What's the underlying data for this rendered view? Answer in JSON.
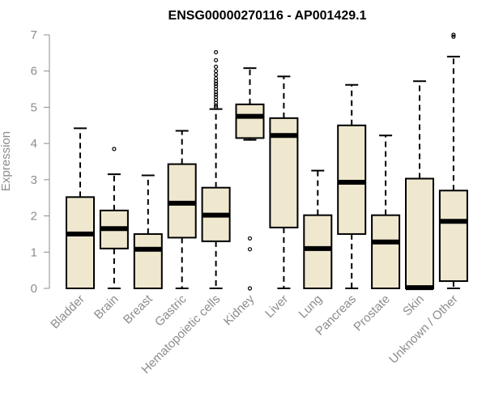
{
  "chart_data": {
    "type": "boxplot",
    "title": "ENSG00000270116 - AP001429.1",
    "xlabel": "",
    "ylabel": "Expression",
    "ylim": [
      0,
      7
    ],
    "yticks": [
      "0",
      "1",
      "2",
      "3",
      "4",
      "5",
      "6",
      "7"
    ],
    "box_fill": "#efe8cf",
    "categories": [
      "Bladder",
      "Brain",
      "Breast",
      "Gastric",
      "Hematopoietic cells",
      "Kidney",
      "Liver",
      "Lung",
      "Pancreas",
      "Prostate",
      "Skin",
      "Unknown / Other"
    ],
    "boxes": [
      {
        "whisker_low": 0.0,
        "q1": 0.0,
        "median": 1.5,
        "q3": 2.52,
        "whisker_high": 4.42,
        "outliers": []
      },
      {
        "whisker_low": 0.0,
        "q1": 1.1,
        "median": 1.65,
        "q3": 2.15,
        "whisker_high": 3.15,
        "outliers": [
          3.85
        ]
      },
      {
        "whisker_low": 0.0,
        "q1": 0.0,
        "median": 1.08,
        "q3": 1.5,
        "whisker_high": 3.12,
        "outliers": []
      },
      {
        "whisker_low": 0.0,
        "q1": 1.4,
        "median": 2.35,
        "q3": 3.43,
        "whisker_high": 4.35,
        "outliers": []
      },
      {
        "whisker_low": 0.0,
        "q1": 1.3,
        "median": 2.02,
        "q3": 2.78,
        "whisker_high": 4.95,
        "outliers": [
          5.0,
          5.05,
          5.12,
          5.2,
          5.28,
          5.35,
          5.42,
          5.5,
          5.58,
          5.65,
          5.72,
          5.8,
          5.9,
          6.0,
          6.12,
          6.3,
          6.52
        ]
      },
      {
        "whisker_low": 4.1,
        "q1": 4.15,
        "median": 4.75,
        "q3": 5.08,
        "whisker_high": 6.08,
        "outliers": [
          0.0,
          1.08,
          1.38
        ]
      },
      {
        "whisker_low": 0.0,
        "q1": 1.68,
        "median": 4.22,
        "q3": 4.7,
        "whisker_high": 5.85,
        "outliers": []
      },
      {
        "whisker_low": 0.0,
        "q1": 0.0,
        "median": 1.1,
        "q3": 2.02,
        "whisker_high": 3.25,
        "outliers": []
      },
      {
        "whisker_low": 0.0,
        "q1": 1.5,
        "median": 2.93,
        "q3": 4.5,
        "whisker_high": 5.62,
        "outliers": []
      },
      {
        "whisker_low": 0.0,
        "q1": 0.0,
        "median": 1.28,
        "q3": 2.02,
        "whisker_high": 4.22,
        "outliers": []
      },
      {
        "whisker_low": 0.0,
        "q1": 0.0,
        "median": 0.02,
        "q3": 3.03,
        "whisker_high": 5.72,
        "outliers": []
      },
      {
        "whisker_low": 0.0,
        "q1": 0.2,
        "median": 1.85,
        "q3": 2.7,
        "whisker_high": 6.4,
        "outliers": [
          6.95,
          7.0
        ]
      }
    ]
  }
}
